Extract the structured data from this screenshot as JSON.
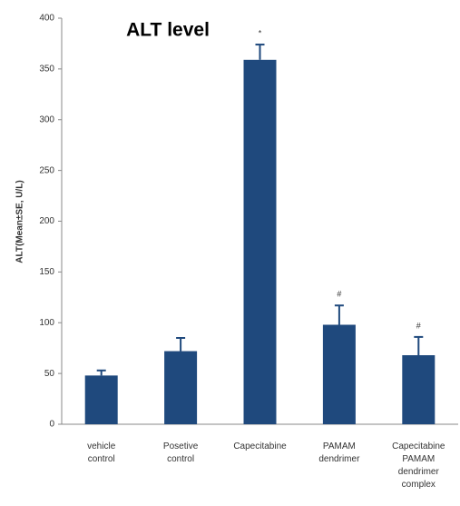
{
  "chart_data": {
    "type": "bar",
    "title": "ALT level",
    "y_label": "ALT(Mean±SE, U/L)",
    "categories": [
      "vehicle control",
      "Posetive control",
      "Capecitabine",
      "PAMAM dendrimer",
      "Capecitabine PAMAM dendrimer complex"
    ],
    "values": [
      48,
      72,
      359,
      98,
      68
    ],
    "errors": [
      5,
      13,
      15,
      19,
      18
    ],
    "color": "#1f497d",
    "ylim": [
      0,
      400
    ],
    "yticks": [
      0,
      50,
      100,
      150,
      200,
      250,
      300,
      350,
      400
    ],
    "grid": false,
    "annotations": [
      {
        "text": "*",
        "category": "Capecitabine"
      },
      {
        "text": "#",
        "category": "PAMAM dendrimer"
      },
      {
        "text": "#",
        "category": "Capecitabine PAMAM dendrimer complex"
      }
    ]
  }
}
